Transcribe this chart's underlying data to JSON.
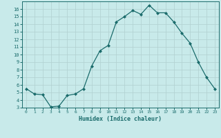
{
  "x": [
    0,
    1,
    2,
    3,
    4,
    5,
    6,
    7,
    8,
    9,
    10,
    11,
    12,
    13,
    14,
    15,
    16,
    17,
    18,
    19,
    20,
    21,
    22,
    23
  ],
  "y": [
    5.5,
    4.8,
    4.7,
    3.1,
    3.2,
    4.6,
    4.8,
    5.5,
    8.5,
    10.5,
    11.2,
    14.3,
    15.0,
    15.8,
    15.3,
    16.5,
    15.5,
    15.5,
    14.3,
    12.8,
    11.5,
    9.0,
    7.0,
    5.5
  ],
  "line_color": "#1a6b6b",
  "bg_color": "#c8eaea",
  "grid_color": "#b0d0d0",
  "xlabel": "Humidex (Indice chaleur)",
  "ylim": [
    3,
    17
  ],
  "xlim": [
    -0.5,
    23.5
  ],
  "yticks": [
    3,
    4,
    5,
    6,
    7,
    8,
    9,
    10,
    11,
    12,
    13,
    14,
    15,
    16
  ],
  "xticks": [
    0,
    1,
    2,
    3,
    4,
    5,
    6,
    7,
    8,
    9,
    10,
    11,
    12,
    13,
    14,
    15,
    16,
    17,
    18,
    19,
    20,
    21,
    22,
    23
  ]
}
